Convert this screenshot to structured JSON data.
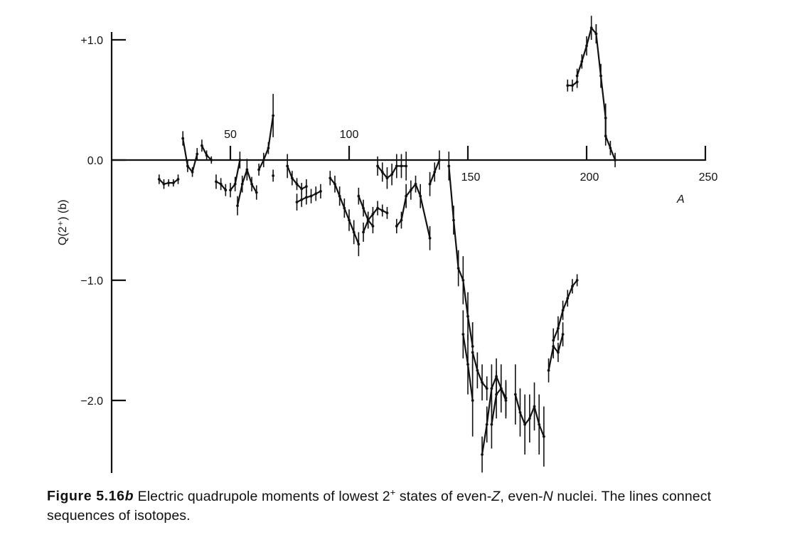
{
  "chart_data": {
    "type": "scatter",
    "xlabel": "A",
    "ylabel": "Q(2⁺) (b)",
    "xlim": [
      0,
      250
    ],
    "ylim": [
      -2.6,
      1.2
    ],
    "grid": false,
    "xticks": [
      {
        "value": 50,
        "label": "50"
      },
      {
        "value": 100,
        "label": "100"
      },
      {
        "value": 150,
        "label": "150"
      },
      {
        "value": 200,
        "label": "200"
      },
      {
        "value": 250,
        "label": "250"
      }
    ],
    "yticks": [
      {
        "value": 1.0,
        "label": "+1.0"
      },
      {
        "value": 0.0,
        "label": "0.0"
      },
      {
        "value": -1.0,
        "label": "−1.0"
      },
      {
        "value": -2.0,
        "label": "−2.0"
      }
    ],
    "series": [
      {
        "points": [
          [
            20,
            -0.16,
            0.04
          ],
          [
            22,
            -0.2,
            0.04
          ],
          [
            24,
            -0.19,
            0.03
          ],
          [
            26,
            -0.19,
            0.03
          ],
          [
            28,
            -0.16,
            0.04
          ]
        ]
      },
      {
        "points": [
          [
            30,
            0.18,
            0.06
          ],
          [
            32,
            -0.05,
            0.05
          ],
          [
            34,
            -0.1,
            0.04
          ],
          [
            36,
            0.05,
            0.05
          ]
        ]
      },
      {
        "points": [
          [
            38,
            0.12,
            0.05
          ],
          [
            40,
            0.04,
            0.04
          ],
          [
            42,
            0.0,
            0.03
          ]
        ]
      },
      {
        "points": [
          [
            44,
            -0.18,
            0.06
          ],
          [
            46,
            -0.2,
            0.05
          ],
          [
            48,
            -0.25,
            0.05
          ]
        ]
      },
      {
        "points": [
          [
            50,
            -0.25,
            0.06
          ],
          [
            52,
            -0.2,
            0.06
          ],
          [
            54,
            0.0,
            0.07
          ]
        ]
      },
      {
        "points": [
          [
            53,
            -0.38,
            0.08
          ],
          [
            55,
            -0.2,
            0.07
          ],
          [
            57,
            -0.08,
            0.09
          ],
          [
            59,
            -0.2,
            0.06
          ],
          [
            61,
            -0.27,
            0.06
          ]
        ]
      },
      {
        "points": [
          [
            62,
            -0.08,
            0.05
          ],
          [
            64,
            0.0,
            0.06
          ],
          [
            66,
            0.1,
            0.05
          ],
          [
            68,
            0.37,
            0.18
          ]
        ]
      },
      {
        "points": [
          [
            68,
            -0.13,
            0.05
          ]
        ]
      },
      {
        "points": [
          [
            74,
            -0.05,
            0.1
          ],
          [
            76,
            -0.15,
            0.06
          ],
          [
            78,
            -0.2,
            0.05
          ],
          [
            80,
            -0.24,
            0.05
          ],
          [
            82,
            -0.22,
            0.06
          ]
        ]
      },
      {
        "points": [
          [
            78,
            -0.35,
            0.07
          ],
          [
            80,
            -0.33,
            0.06
          ],
          [
            82,
            -0.31,
            0.06
          ],
          [
            84,
            -0.3,
            0.06
          ],
          [
            86,
            -0.28,
            0.06
          ],
          [
            88,
            -0.26,
            0.06
          ]
        ]
      },
      {
        "points": [
          [
            92,
            -0.15,
            0.06
          ],
          [
            94,
            -0.2,
            0.07
          ],
          [
            96,
            -0.3,
            0.08
          ],
          [
            98,
            -0.4,
            0.08
          ],
          [
            100,
            -0.5,
            0.09
          ],
          [
            102,
            -0.6,
            0.1
          ],
          [
            104,
            -0.7,
            0.1
          ]
        ]
      },
      {
        "points": [
          [
            104,
            -0.3,
            0.07
          ],
          [
            106,
            -0.4,
            0.07
          ],
          [
            108,
            -0.5,
            0.07
          ],
          [
            110,
            -0.55,
            0.06
          ]
        ]
      },
      {
        "points": [
          [
            106,
            -0.6,
            0.08
          ],
          [
            108,
            -0.5,
            0.07
          ],
          [
            110,
            -0.45,
            0.06
          ],
          [
            112,
            -0.4,
            0.06
          ],
          [
            114,
            -0.42,
            0.05
          ],
          [
            116,
            -0.44,
            0.05
          ]
        ]
      },
      {
        "points": [
          [
            112,
            -0.05,
            0.08
          ],
          [
            114,
            -0.1,
            0.08
          ],
          [
            116,
            -0.15,
            0.09
          ],
          [
            118,
            -0.12,
            0.09
          ],
          [
            120,
            -0.05,
            0.1
          ],
          [
            122,
            -0.05,
            0.1
          ],
          [
            124,
            -0.05,
            0.12
          ]
        ]
      },
      {
        "points": [
          [
            120,
            -0.55,
            0.06
          ],
          [
            122,
            -0.5,
            0.07
          ],
          [
            124,
            -0.3,
            0.1
          ],
          [
            126,
            -0.25,
            0.08
          ],
          [
            128,
            -0.2,
            0.07
          ],
          [
            130,
            -0.3,
            0.1
          ],
          [
            134,
            -0.65,
            0.1
          ]
        ]
      },
      {
        "points": [
          [
            134,
            -0.2,
            0.1
          ],
          [
            136,
            -0.1,
            0.08
          ],
          [
            138,
            0.0,
            0.08
          ]
        ]
      },
      {
        "points": [
          [
            142,
            -0.05,
            0.12
          ],
          [
            144,
            -0.5,
            0.12
          ],
          [
            146,
            -0.9,
            0.15
          ],
          [
            148,
            -1.0,
            0.2
          ],
          [
            150,
            -1.3,
            0.2
          ],
          [
            152,
            -1.55,
            0.2
          ]
        ]
      },
      {
        "points": [
          [
            148,
            -1.45,
            0.2
          ],
          [
            150,
            -1.7,
            0.25
          ],
          [
            152,
            -2.0,
            0.3
          ]
        ]
      },
      {
        "points": [
          [
            152,
            -1.6,
            0.25
          ],
          [
            154,
            -1.75,
            0.15
          ],
          [
            156,
            -1.85,
            0.15
          ],
          [
            158,
            -1.9,
            0.1
          ]
        ]
      },
      {
        "points": [
          [
            156,
            -2.45,
            0.15
          ],
          [
            158,
            -2.2,
            0.15
          ],
          [
            160,
            -1.9,
            0.2
          ],
          [
            162,
            -1.8,
            0.15
          ],
          [
            164,
            -1.9,
            0.1
          ],
          [
            166,
            -2.0,
            0.15
          ]
        ]
      },
      {
        "points": [
          [
            160,
            -2.2,
            0.2
          ],
          [
            162,
            -1.95,
            0.2
          ],
          [
            164,
            -1.9,
            0.2
          ],
          [
            166,
            -1.98,
            0.15
          ]
        ]
      },
      {
        "points": [
          [
            170,
            -1.95,
            0.25
          ],
          [
            172,
            -2.1,
            0.2
          ],
          [
            174,
            -2.2,
            0.25
          ],
          [
            176,
            -2.15,
            0.2
          ],
          [
            178,
            -2.05,
            0.2
          ],
          [
            180,
            -2.2,
            0.25
          ],
          [
            182,
            -2.3,
            0.25
          ]
        ]
      },
      {
        "points": [
          [
            184,
            -1.75,
            0.1
          ],
          [
            186,
            -1.55,
            0.1
          ],
          [
            188,
            -1.6,
            0.08
          ],
          [
            190,
            -1.45,
            0.1
          ]
        ]
      },
      {
        "points": [
          [
            186,
            -1.5,
            0.1
          ],
          [
            188,
            -1.4,
            0.1
          ],
          [
            190,
            -1.25,
            0.08
          ],
          [
            192,
            -1.15,
            0.07
          ],
          [
            194,
            -1.05,
            0.06
          ],
          [
            196,
            -1.0,
            0.05
          ]
        ]
      },
      {
        "points": [
          [
            192,
            0.62,
            0.05
          ],
          [
            194,
            0.62,
            0.05
          ],
          [
            196,
            0.65,
            0.05
          ]
        ]
      },
      {
        "points": [
          [
            196,
            0.7,
            0.06
          ],
          [
            198,
            0.82,
            0.06
          ],
          [
            200,
            0.95,
            0.08
          ],
          [
            202,
            1.1,
            0.1
          ],
          [
            204,
            1.05,
            0.08
          ]
        ]
      },
      {
        "points": [
          [
            204,
            1.05,
            0.08
          ],
          [
            206,
            0.7,
            0.1
          ],
          [
            208,
            0.35,
            0.12
          ],
          [
            208,
            0.2,
            0.08
          ],
          [
            210,
            0.1,
            0.06
          ],
          [
            212,
            0.0,
            0.06
          ]
        ]
      }
    ]
  },
  "caption": {
    "figure_label": "Figure 5.16",
    "figure_suffix": "b",
    "text_1": " Electric quadrupole moments of lowest 2",
    "superscript": "+",
    "text_2": " states of even-",
    "z": "Z",
    "text_3": ", even-",
    "n": "N",
    "text_4": " nuclei. The lines connect sequences of isotopes."
  }
}
